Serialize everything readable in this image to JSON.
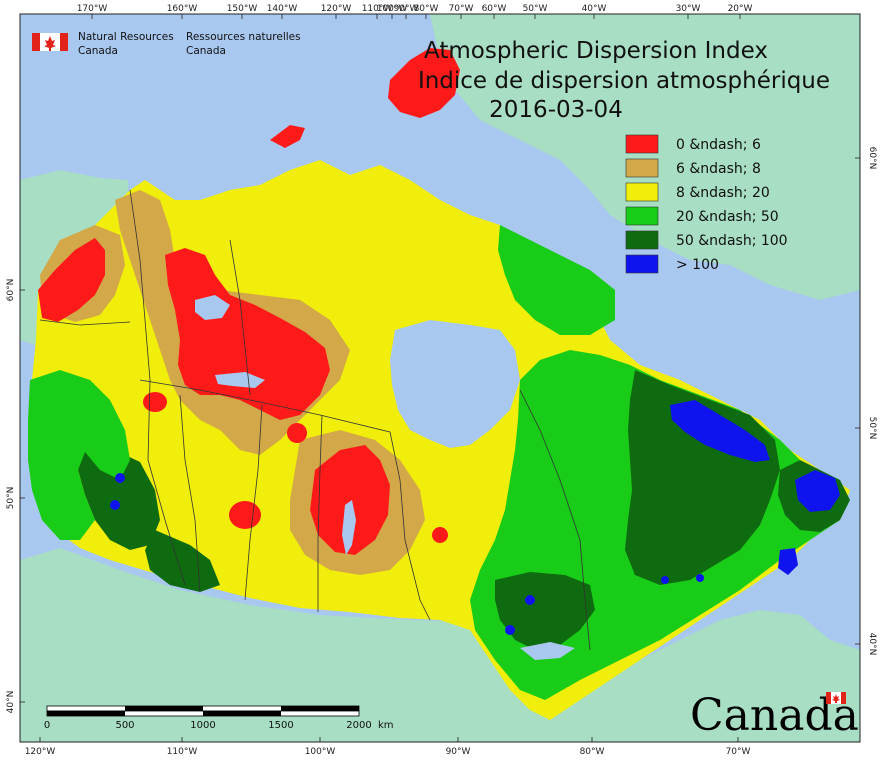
{
  "title": {
    "en": "Atmospheric Dispersion Index",
    "fr": "Indice de dispersion atmosphérique",
    "date": "2016-03-04"
  },
  "agency": {
    "en_line1": "Natural Resources",
    "en_line2": "Canada",
    "fr_line1": "Ressources naturelles",
    "fr_line2": "Canada"
  },
  "wordmark": "Canada",
  "legend": [
    {
      "label": "0 &ndash; 6",
      "color": "#ff1a1a"
    },
    {
      "label": "6 &ndash; 8",
      "color": "#d2a848"
    },
    {
      "label": "8 &ndash; 20",
      "color": "#f0ee0a"
    },
    {
      "label": "20 &ndash; 50",
      "color": "#18cc18"
    },
    {
      "label": "50 &ndash; 100",
      "color": "#0f6b0f"
    },
    {
      "label": "> 100",
      "color": "#0f14ee"
    }
  ],
  "top_ticks": [
    "170°W",
    "160°W",
    "150°W",
    "140°W",
    "120°W",
    "110°W",
    "100°W",
    "90°W",
    "80°W",
    "70°W",
    "60°W",
    "50°W",
    "40°W",
    "30°W",
    "20°W"
  ],
  "bottom_ticks": [
    "120°W",
    "110°W",
    "100°W",
    "90°W",
    "80°W",
    "70°W"
  ],
  "left_ticks": [
    "60°N",
    "50°N",
    "40°N"
  ],
  "right_ticks": [
    "60°N",
    "50°N",
    "40°N"
  ],
  "scale_bar": {
    "labels": [
      "0",
      "500",
      "1000",
      "1500",
      "2000"
    ],
    "unit": "km"
  },
  "colors": {
    "ocean": "#a9c8ef",
    "foreign_land": "#a8dec4",
    "lake": "#a9c8ef",
    "boundary": "#333333",
    "flag_red": "#e2231a"
  }
}
